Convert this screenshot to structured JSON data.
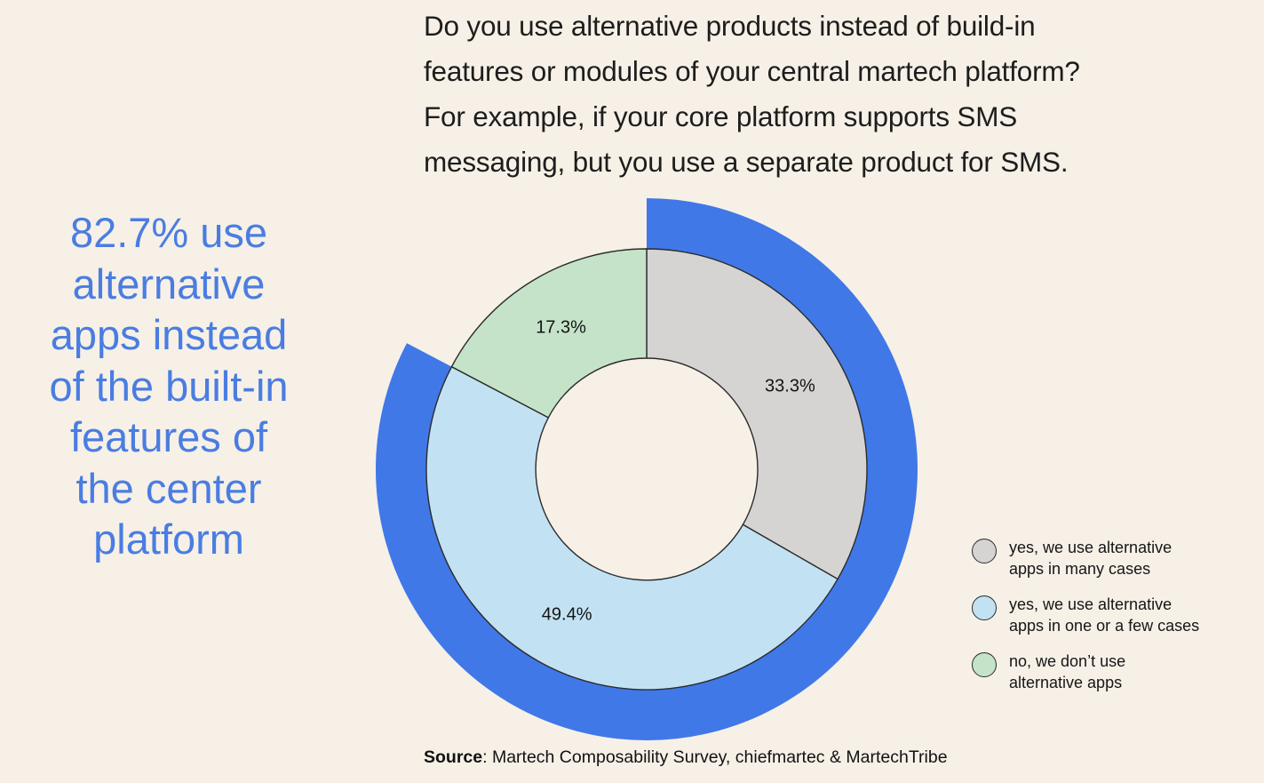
{
  "title": {
    "lines": [
      "Do you use alternative products instead of build-in",
      "features or modules of your central martech platform?",
      "For example, if your core platform supports SMS",
      "messaging, but you use a separate product for SMS."
    ]
  },
  "headline": {
    "lines": [
      "82.7% use",
      "alternative",
      "apps instead",
      "of the built-in",
      "features of",
      "the center",
      "platform"
    ]
  },
  "source": {
    "label": "Source",
    "text": ": Martech Composability Survey, chiefmartec & MartechTribe"
  },
  "colors": {
    "background": "#f6f0e7",
    "accent_blue": "#4078e8",
    "headline_blue": "#4a7de2",
    "slice_outline": "#2b2b2b",
    "label_text": "#141414"
  },
  "chart_data": {
    "type": "pie",
    "variant": "donut-with-outer-highlight-arc",
    "title": "Do you use alternative products instead of build-in features or modules of your central martech platform? For example, if your core platform supports SMS messaging, but you use a separate product for SMS.",
    "start_angle": "top",
    "direction": "clockwise",
    "legend_position": "right",
    "slices": [
      {
        "label": "yes, we use alternative apps in many cases",
        "value": 33.3,
        "pct_label": "33.3%",
        "color": "#d5d4d2",
        "legend_lines": [
          "yes, we use alternative",
          "apps in many cases"
        ]
      },
      {
        "label": "yes, we use alternative apps in one or a few cases",
        "value": 49.4,
        "pct_label": "49.4%",
        "color": "#c2e2f3",
        "legend_lines": [
          "yes, we use alternative",
          "apps in one or a few cases"
        ]
      },
      {
        "label": "no, we don’t use alternative apps",
        "value": 17.3,
        "pct_label": "17.3%",
        "color": "#c5e3c8",
        "legend_lines": [
          "no, we don’t use",
          "alternative apps"
        ]
      }
    ],
    "highlight_arc": {
      "value": 82.7,
      "color": "#4078e8",
      "label": "82.7% use alternative apps instead of the built-in features of the center platform"
    }
  }
}
